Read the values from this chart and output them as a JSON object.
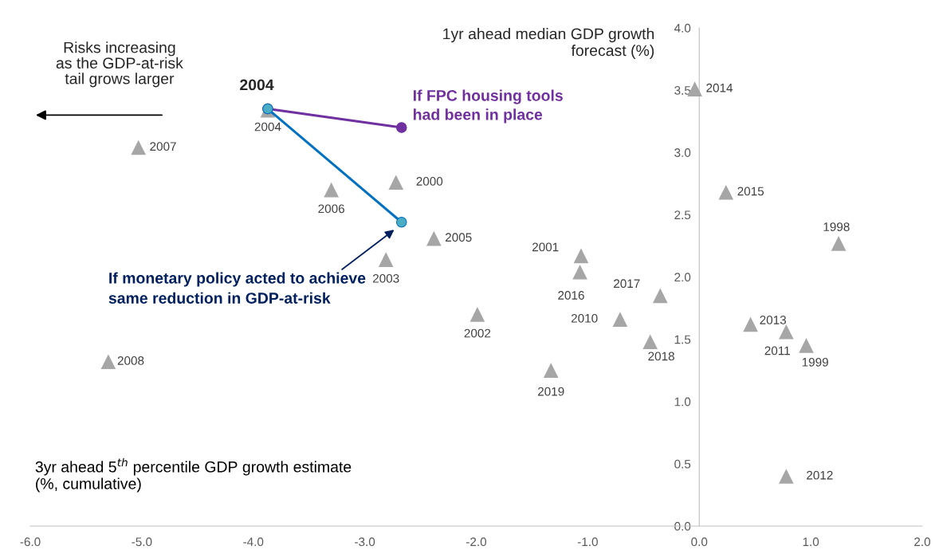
{
  "chart_data": {
    "type": "scatter",
    "xlabel": "3yr ahead 5$^{th}$ percentile GDP growth estimate\n(%, cumulative)",
    "ylabel": "1yr ahead median GDP growth\nforecast (%)",
    "xlim": [
      -6,
      2
    ],
    "xticks": [
      {
        "value": -6,
        "label": "-6.0"
      },
      {
        "value": -5,
        "label": "-5.0"
      },
      {
        "value": -4,
        "label": "-4.0"
      },
      {
        "value": -3,
        "label": "-3.0"
      },
      {
        "value": -2,
        "label": "-2.0"
      },
      {
        "value": -1,
        "label": "-1.0"
      },
      {
        "value": 0,
        "label": "0.0"
      },
      {
        "value": 1,
        "label": "1.0"
      },
      {
        "value": 2,
        "label": "2.0"
      }
    ],
    "ylim": [
      0,
      4
    ],
    "yticks": [
      {
        "value": 0,
        "label": "0.0"
      },
      {
        "value": 0.5,
        "label": "0.5"
      },
      {
        "value": 1,
        "label": "1.0"
      },
      {
        "value": 1.5,
        "label": "1.5"
      },
      {
        "value": 2,
        "label": "2.0"
      },
      {
        "value": 2.5,
        "label": "2.5"
      },
      {
        "value": 3,
        "label": "3.0"
      },
      {
        "value": 3.5,
        "label": "3.5"
      },
      {
        "value": 4,
        "label": "4.0"
      }
    ],
    "grid": false,
    "legend": false,
    "series": [
      {
        "marker": "triangle",
        "color": "#a6a6a6",
        "x": [
          -0.04,
          -5.03,
          -3.87,
          -3.3,
          -2.72,
          -2.38,
          -2.81,
          -1.06,
          -1.07,
          -0.35,
          -0.71,
          -0.44,
          -1.99,
          -1.33,
          -5.3,
          0.24,
          1.25,
          0.46,
          0.78,
          0.96,
          0.78
        ],
        "values": [
          3.51,
          3.04,
          3.34,
          2.7,
          2.76,
          2.31,
          2.14,
          2.17,
          2.04,
          1.85,
          1.66,
          1.48,
          1.7,
          1.25,
          1.32,
          2.68,
          2.27,
          1.62,
          1.56,
          1.45,
          0.4
        ]
      },
      {
        "type": "line",
        "marker": "circle",
        "color": "#7030a0",
        "x": [
          -3.87,
          -2.67
        ],
        "values": [
          3.35,
          3.2
        ]
      },
      {
        "type": "line",
        "marker": "circle",
        "color": "#0070c0",
        "x": [
          -3.87,
          -2.67
        ],
        "values": [
          3.35,
          2.44
        ]
      }
    ],
    "annotations": [
      "Risks increasing\nas the GDP-at-risk\ntail grows larger",
      {
        "text": "2004",
        "x": -3.87,
        "y": 3.35
      },
      {
        "text": "If FPC housing tools\nhad been in place",
        "x": -2.67,
        "y": 3.2
      },
      "If monetary policy acted to achieve\nsame reduction in GDP-at-risk",
      {
        "text": "2014",
        "x": -0.04,
        "y": 3.51
      },
      {
        "text": "2007",
        "x": -5.03,
        "y": 3.04
      },
      {
        "text": "2004",
        "x": -3.87,
        "y": 3.34
      },
      {
        "text": "2006",
        "x": -3.3,
        "y": 2.7
      },
      {
        "text": "2000",
        "x": -2.72,
        "y": 2.76
      },
      {
        "text": "2005",
        "x": -2.38,
        "y": 2.31
      },
      {
        "text": "2003",
        "x": -2.81,
        "y": 2.14
      },
      {
        "text": "2001",
        "x": -1.06,
        "y": 2.17
      },
      {
        "text": "2016",
        "x": -1.07,
        "y": 2.04
      },
      {
        "text": "2017",
        "x": -0.35,
        "y": 1.85
      },
      {
        "text": "2010",
        "x": -0.71,
        "y": 1.66
      },
      {
        "text": "2018",
        "x": -0.44,
        "y": 1.48
      },
      {
        "text": "2002",
        "x": -1.99,
        "y": 1.7
      },
      {
        "text": "2019",
        "x": -1.33,
        "y": 1.25
      },
      {
        "text": "2008",
        "x": -5.3,
        "y": 1.32
      },
      {
        "text": "2015",
        "x": 0.24,
        "y": 2.68
      },
      {
        "text": "1998",
        "x": 1.25,
        "y": 2.27
      },
      {
        "text": "2013",
        "x": 0.46,
        "y": 1.62
      },
      {
        "text": "2011",
        "x": 0.78,
        "y": 1.56
      },
      {
        "text": "1999",
        "x": 0.96,
        "y": 1.45
      },
      {
        "text": "2012",
        "x": 0.78,
        "y": 0.4
      }
    ]
  }
}
